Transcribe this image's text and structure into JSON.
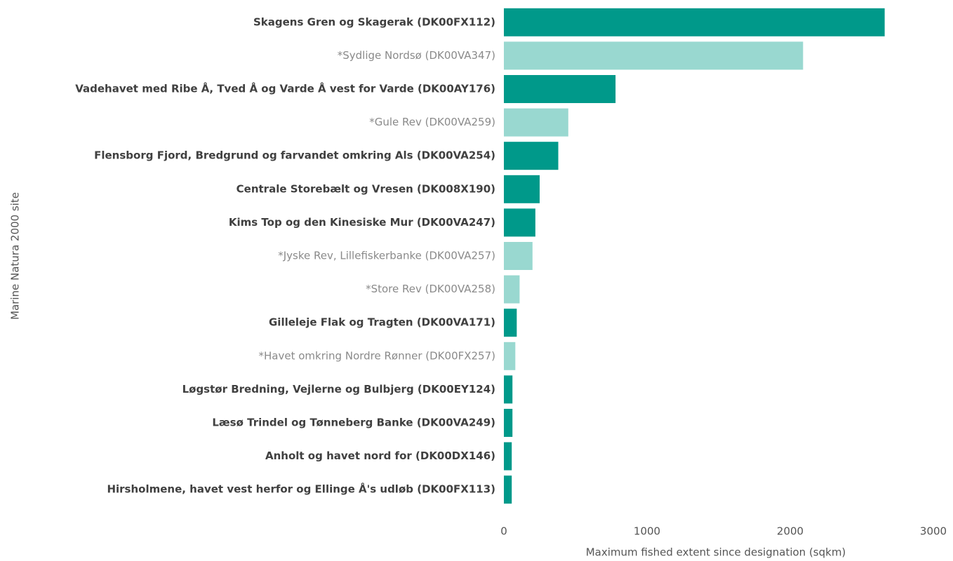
{
  "chart_data": {
    "type": "barh",
    "xlabel": "Maximum fished extent since designation (sqkm)",
    "ylabel": "Marine Natura 2000 site",
    "categories": [
      "Skagens Gren og Skagerak (DK00FX112)",
      "*Sydlige Nordsø (DK00VA347)",
      "Vadehavet med Ribe Å, Tved Å og Varde Å vest for Varde (DK00AY176)",
      "*Gule Rev (DK00VA259)",
      "Flensborg Fjord, Bredgrund og farvandet omkring Als (DK00VA254)",
      "Centrale Storebælt og Vresen (DK008X190)",
      "Kims Top og den Kinesiske Mur (DK00VA247)",
      "*Jyske Rev, Lillefiskerbanke (DK00VA257)",
      "*Store Rev (DK00VA258)",
      "Gilleleje Flak og Tragten (DK00VA171)",
      "*Havet omkring Nordre Rønner (DK00FX257)",
      "Løgstør Bredning, Vejlerne og Bulbjerg (DK00EY124)",
      "Læsø Trindel og Tønneberg Banke (DK00VA249)",
      "Anholt og havet nord for (DK00DX146)",
      "Hirsholmene, havet vest herfor og Ellinge Å's udløb (DK00FX113)"
    ],
    "values": [
      2660,
      2090,
      780,
      450,
      380,
      250,
      220,
      200,
      110,
      90,
      80,
      60,
      60,
      55,
      55
    ],
    "color": "#00998a",
    "colors": [
      "#00998a",
      "#99d8d0",
      "#00998a",
      "#99d8d0",
      "#00998a",
      "#00998a",
      "#00998a",
      "#99d8d0",
      "#99d8d0",
      "#00998a",
      "#99d8d0",
      "#00998a",
      "#00998a",
      "#00998a",
      "#00998a"
    ],
    "xlim": [
      0,
      3000
    ],
    "xticks": [
      0,
      1000,
      2000,
      3000
    ],
    "grid": false
  }
}
